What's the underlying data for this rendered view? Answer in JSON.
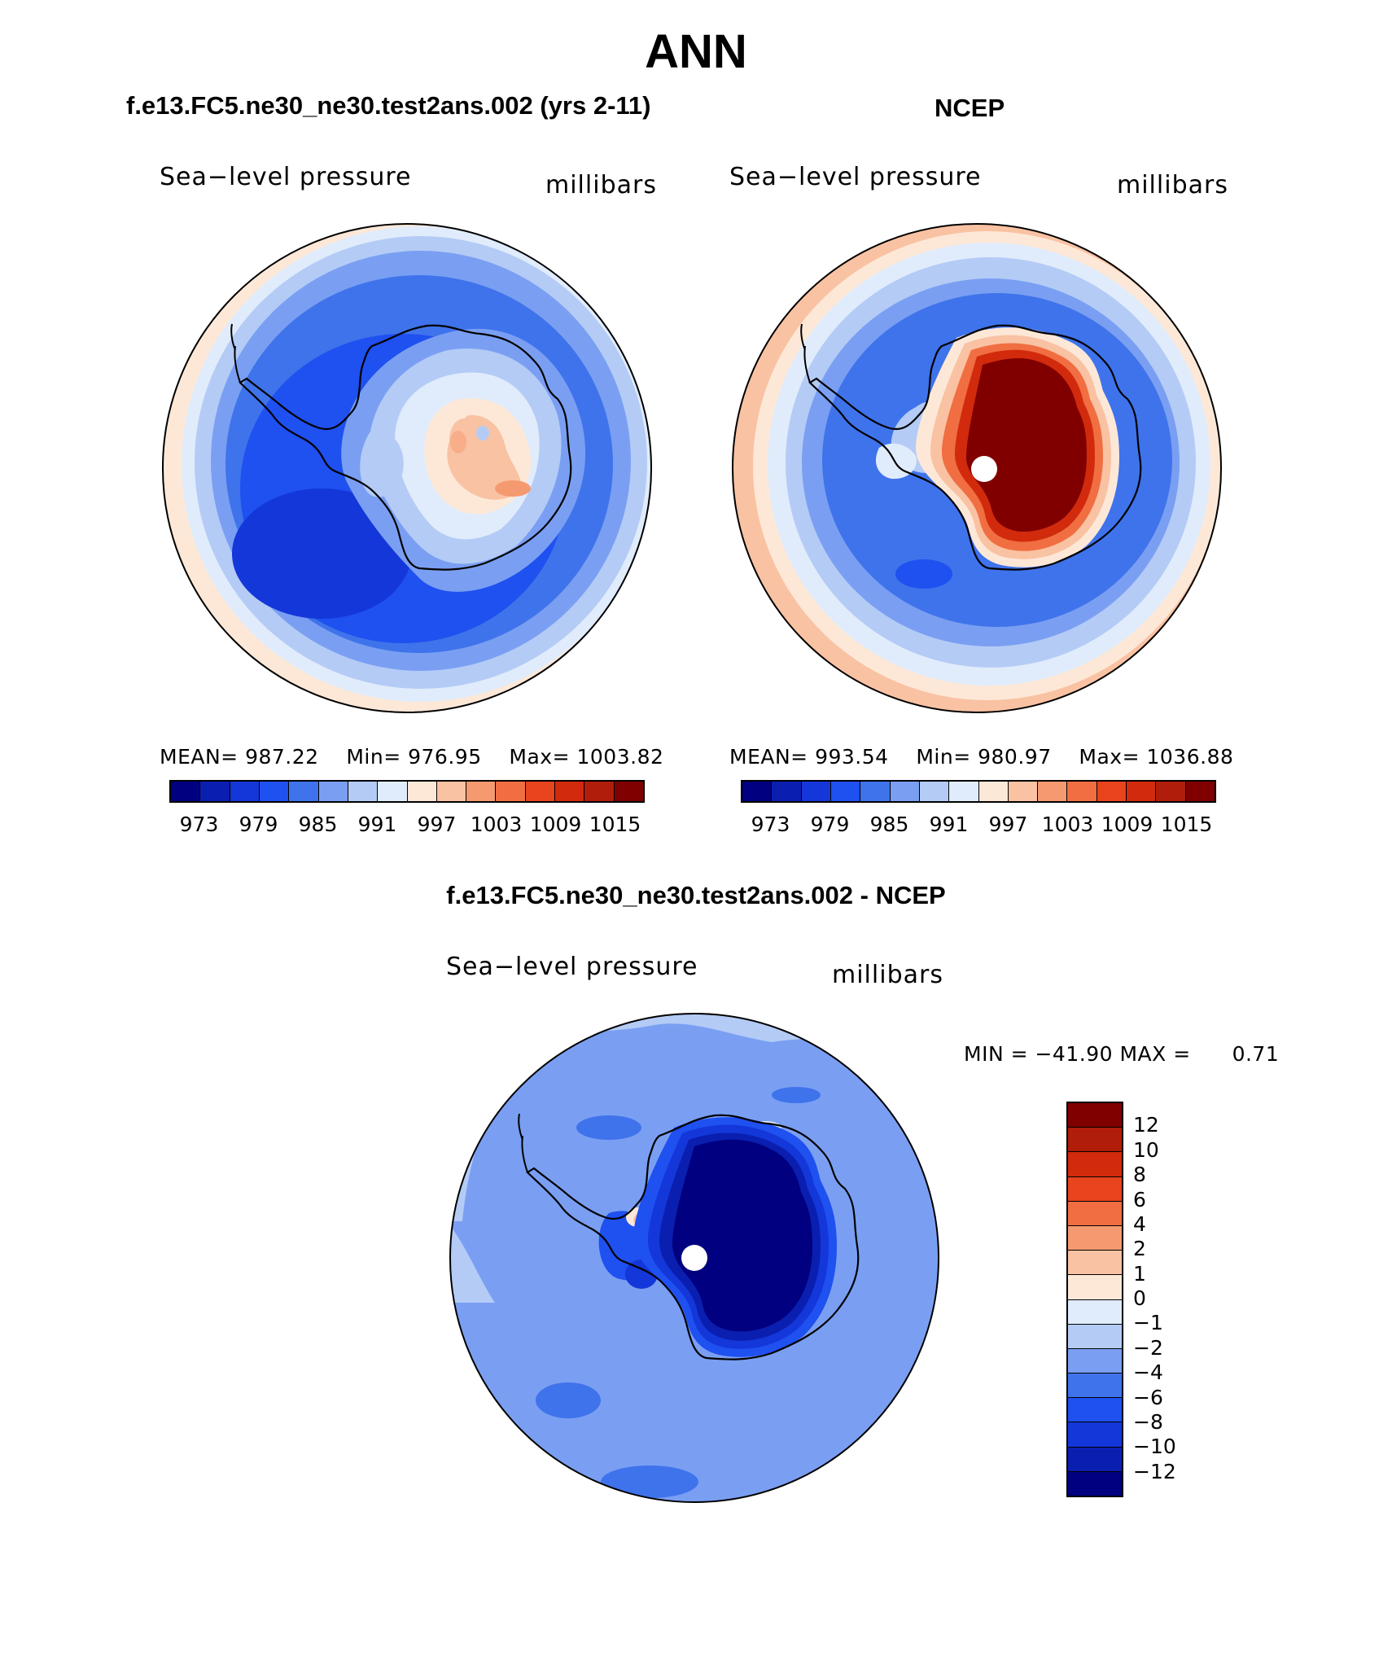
{
  "title": "ANN",
  "panels": {
    "model": {
      "title": "f.e13.FC5.ne30_ne30.test2ans.002 (yrs 2-11)",
      "variable": "Sea−level pressure",
      "units": "millibars",
      "mean_label": "MEAN=",
      "mean": "987.22",
      "min_label": "Min=",
      "min": "976.95",
      "max_label": "Max=",
      "max": "1003.82"
    },
    "obs": {
      "title": "NCEP",
      "variable": "Sea−level pressure",
      "units": "millibars",
      "mean_label": "MEAN=",
      "mean": "993.54",
      "min_label": "Min=",
      "min": "980.97",
      "max_label": "Max=",
      "max": "1036.88"
    },
    "diff": {
      "title": "f.e13.FC5.ne30_ne30.test2ans.002 - NCEP",
      "variable": "Sea−level pressure",
      "units": "millibars",
      "min_text": "MIN = −41.90 MAX =",
      "max_value": "0.71"
    }
  },
  "colorbar_abs": {
    "colors": [
      "#000080",
      "#0a1fb0",
      "#1437d9",
      "#1f50f0",
      "#3f73eb",
      "#7a9ff2",
      "#b4cbf6",
      "#e0ecfb",
      "#fde8d8",
      "#f9c2a3",
      "#f59a70",
      "#f06e42",
      "#e8441e",
      "#d22a0c",
      "#b01d0a",
      "#800000"
    ],
    "ticks": [
      "973",
      "979",
      "985",
      "991",
      "997",
      "1003",
      "1009",
      "1015"
    ]
  },
  "colorbar_diff": {
    "colors": [
      "#000080",
      "#0a1fb0",
      "#1437d9",
      "#1f50f0",
      "#3f73eb",
      "#7a9ff2",
      "#b4cbf6",
      "#e0ecfb",
      "#fde8d8",
      "#f9c2a3",
      "#f59a70",
      "#f06e42",
      "#e8441e",
      "#d22a0c",
      "#b01d0a",
      "#800000"
    ],
    "ticks": [
      "12",
      "10",
      "8",
      "6",
      "4",
      "2",
      "1",
      "0",
      "−1",
      "−2",
      "−4",
      "−6",
      "−8",
      "−10",
      "−12"
    ]
  }
}
